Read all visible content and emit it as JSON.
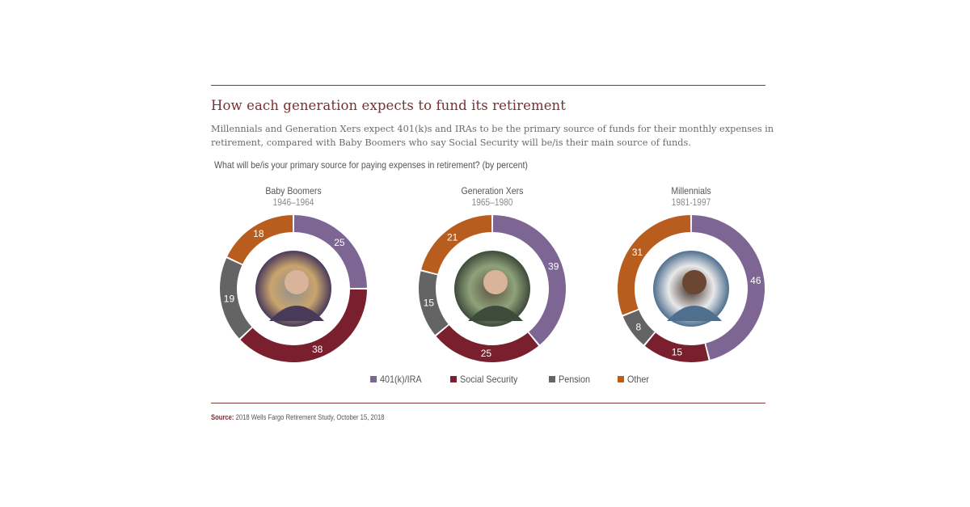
{
  "header": {
    "title": "How each generation expects to fund its retirement",
    "description": "Millennials and Generation Xers expect 401(k)s and IRAs to be the primary source of funds for their monthly expenses in retirement, compared with Baby Boomers who say Social Security will be/is their main source of funds.",
    "question": "What will be/is your primary source for paying expenses in retirement? (by percent)"
  },
  "colors": {
    "401k_ira": "#7d6693",
    "social_security": "#7a1f2d",
    "pension": "#646464",
    "other": "#b95d1e",
    "rule": "#7a3b3b"
  },
  "legend": [
    {
      "label": "401(k)/IRA",
      "color": "#7d6693"
    },
    {
      "label": "Social Security",
      "color": "#7a1f2d"
    },
    {
      "label": "Pension",
      "color": "#646464"
    },
    {
      "label": "Other",
      "color": "#b95d1e"
    }
  ],
  "footer": {
    "source_label": "Source:",
    "source_text": "2018 Wells Fargo Retirement Study, October 15, 2018"
  },
  "chart_data": {
    "type": "pie",
    "subtype": "donut",
    "title": "How each generation expects to fund its retirement",
    "subtitle": "What will be/is your primary source for paying expenses in retirement? (by percent)",
    "legend_position": "bottom",
    "categories": [
      "401(k)/IRA",
      "Social Security",
      "Pension",
      "Other"
    ],
    "series": [
      {
        "name": "Baby Boomers",
        "years": "1946–1964",
        "values": [
          25,
          38,
          19,
          18
        ]
      },
      {
        "name": "Generation Xers",
        "years": "1965–1980",
        "values": [
          39,
          25,
          15,
          21
        ]
      },
      {
        "name": "Millennials",
        "years": "1981-1997",
        "values": [
          46,
          15,
          8,
          31
        ]
      }
    ]
  },
  "generations": [
    {
      "name": "Baby Boomers",
      "years": "1946–1964",
      "photo": "senior-couple-photo"
    },
    {
      "name": "Generation Xers",
      "years": "1965–1980",
      "photo": "man-outdoors-photo"
    },
    {
      "name": "Millennials",
      "years": "1981-1997",
      "photo": "woman-with-coffee-photo"
    }
  ]
}
